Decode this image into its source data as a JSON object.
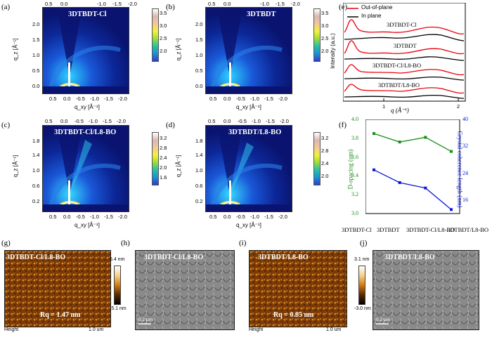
{
  "panels": {
    "a": {
      "label": "(a)",
      "title": "3DTBDT-Cl",
      "cbar_ticks": [
        "3.5",
        "3.0",
        "2.5",
        "2.0"
      ]
    },
    "b": {
      "label": "(b)",
      "title": "3DTBDT",
      "cbar_ticks": [
        "3.5",
        "3.0",
        "2.5",
        "2.0"
      ]
    },
    "c": {
      "label": "(c)",
      "title": "3DTBDT-Cl/L8-BO",
      "cbar_ticks": [
        "3.2",
        "2.8",
        "2.4",
        "2.0",
        "1.6"
      ]
    },
    "d": {
      "label": "(d)",
      "title": "3DTBDT/L8-BO",
      "cbar_ticks": [
        "3.2",
        "2.8",
        "2.4",
        "2.0"
      ]
    },
    "e": {
      "label": "(e)"
    },
    "f": {
      "label": "(f)"
    },
    "g": {
      "label": "(g)",
      "title": "3DTBDT-Cl/L8-BO",
      "rq": "Rq = 1.47 nm",
      "footer_left": "Height",
      "footer_right": "1.0 um"
    },
    "h": {
      "label": "(h)",
      "title": "3DTBDT-Cl/L8-BO",
      "scale": "0.2 μm",
      "cbar_top": "5.4 nm",
      "cbar_bottom": "-5.1 nm"
    },
    "i": {
      "label": "(i)",
      "title": "3DTBDT/L8-BO",
      "rq": "Rq = 0.85 nm",
      "footer_left": "Height",
      "footer_right": "1.0 um"
    },
    "j": {
      "label": "(j)",
      "title": "3DTBDT/L8-BO",
      "scale": "0.2 μm",
      "cbar_top": "3.1 nm",
      "cbar_bottom": "-3.0 nm"
    }
  },
  "giwaxs_axes": {
    "qz_label": "q_z [Å⁻¹]",
    "qxy_label": "q_xy [Å⁻¹]",
    "qz_ticks": [
      "0.0",
      "0.5",
      "1.0",
      "1.5",
      "2.0"
    ],
    "qz_ticks_cd": [
      "0.2",
      "0.6",
      "1.0",
      "1.4",
      "1.8"
    ],
    "qxy_ticks_ab": [
      "0.5",
      "0.0",
      "-0.5",
      "-1.0",
      "-1.5",
      "-2.0"
    ],
    "qxy_ticks_cd": [
      "0.5",
      "0.0",
      "-0.5",
      "-1.0",
      "-1.5",
      "-2.0"
    ],
    "top_ticks_ab": [
      "0.5",
      "0.0",
      "-1.0",
      "-1.5",
      "-2.0"
    ],
    "top_ticks_cd": [
      "0.5",
      "0.0",
      "-0.5",
      "-1.0",
      "-1.5",
      "-2.0"
    ]
  },
  "chart_data": [
    {
      "type": "line",
      "panel": "e",
      "xlabel": "q (Å⁻¹)",
      "ylabel": "Intensity (a.u.)",
      "x_ticks": [
        "1",
        "2"
      ],
      "legend": [
        "Out-of-plane",
        "In plane"
      ],
      "legend_colors": [
        "#e8000b",
        "#000000"
      ],
      "sample_labels": [
        "3DTBDT-Cl",
        "3DTBDT",
        "3DTBDT-Cl/L8-BO",
        "3DTBDT/L8-BO"
      ]
    },
    {
      "type": "line",
      "panel": "f",
      "categories": [
        "3DTBDT-Cl",
        "3DTBDT",
        "3DTBDT-Cl/L8-BO",
        "3DTBDT/L8-BO"
      ],
      "series": [
        {
          "name": "D-spacing (nm)",
          "axis": "left",
          "color": "#1a8f1a",
          "values": [
            3.85,
            3.76,
            3.81,
            3.66
          ]
        },
        {
          "name": "Crystal coherence length (nm)",
          "axis": "right",
          "color": "#0a1ad6",
          "values": [
            25.0,
            21.2,
            19.6,
            13.2
          ]
        }
      ],
      "ylabel_left": "D-spacing (nm)",
      "ylabel_right": "Crystal coherence length (nm)",
      "ylim_left": [
        3.0,
        4.0
      ],
      "ylim_right": [
        12,
        40
      ],
      "yticks_left": [
        "3.0",
        "3.2",
        "3.4",
        "3.6",
        "3.8",
        "4.0"
      ],
      "yticks_right": [
        "16",
        "24",
        "32",
        "40"
      ]
    }
  ]
}
